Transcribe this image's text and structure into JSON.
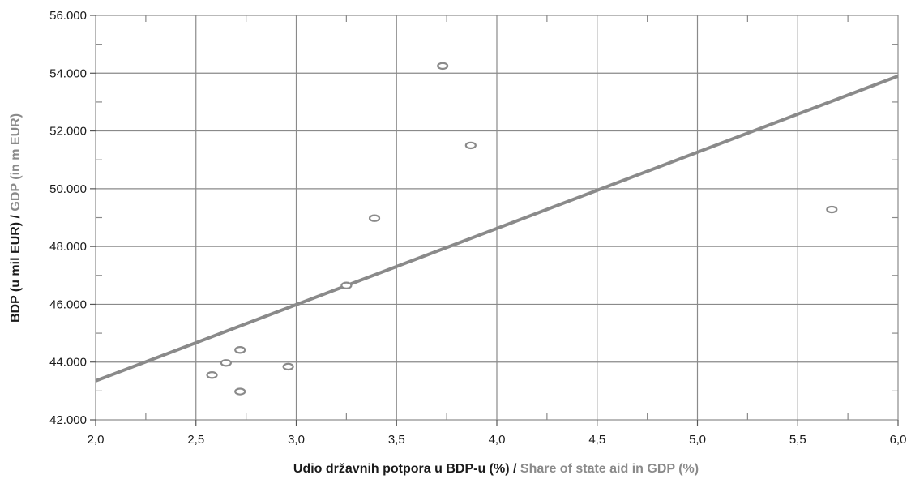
{
  "chart_data": {
    "type": "scatter",
    "title": "",
    "xlabel": {
      "primary": "Udio državnih potpora u BDP-u (%) / ",
      "secondary": "Share of state aid in GDP (%)"
    },
    "ylabel": {
      "primary": "BDP (u mil EUR) / ",
      "secondary": "GDP (in m EUR)"
    },
    "xlim": [
      2.0,
      6.0
    ],
    "ylim": [
      42000,
      56000
    ],
    "x_ticks": [
      2.0,
      2.5,
      3.0,
      3.5,
      4.0,
      4.5,
      5.0,
      5.5,
      6.0
    ],
    "x_tick_labels": [
      "2,0",
      "2,5",
      "3,0",
      "3,5",
      "4,0",
      "4,5",
      "5,0",
      "5,5",
      "6,0"
    ],
    "y_ticks": [
      42000,
      44000,
      46000,
      48000,
      50000,
      52000,
      54000,
      56000
    ],
    "y_tick_labels": [
      "42.000",
      "44.000",
      "46.000",
      "48.000",
      "50.000",
      "52.000",
      "54.000",
      "56.000"
    ],
    "grid": true,
    "series": [
      {
        "points": [
          {
            "x": 2.58,
            "y": 43550
          },
          {
            "x": 2.65,
            "y": 43970
          },
          {
            "x": 2.72,
            "y": 44420
          },
          {
            "x": 2.72,
            "y": 42980
          },
          {
            "x": 2.96,
            "y": 43840
          },
          {
            "x": 3.25,
            "y": 46650
          },
          {
            "x": 3.39,
            "y": 48980
          },
          {
            "x": 3.73,
            "y": 54250
          },
          {
            "x": 3.87,
            "y": 51500
          },
          {
            "x": 5.67,
            "y": 49280
          }
        ]
      }
    ],
    "trendline": {
      "x": [
        2.0,
        6.0
      ],
      "y": [
        43350,
        53900
      ]
    },
    "colors": {
      "grid": "#8a8a8a",
      "axis": "#555555",
      "marker": "#8a8a8a",
      "trendline": "#8a8a8a",
      "label_primary": "#1a1a1a",
      "label_secondary": "#8a8a8a"
    }
  }
}
